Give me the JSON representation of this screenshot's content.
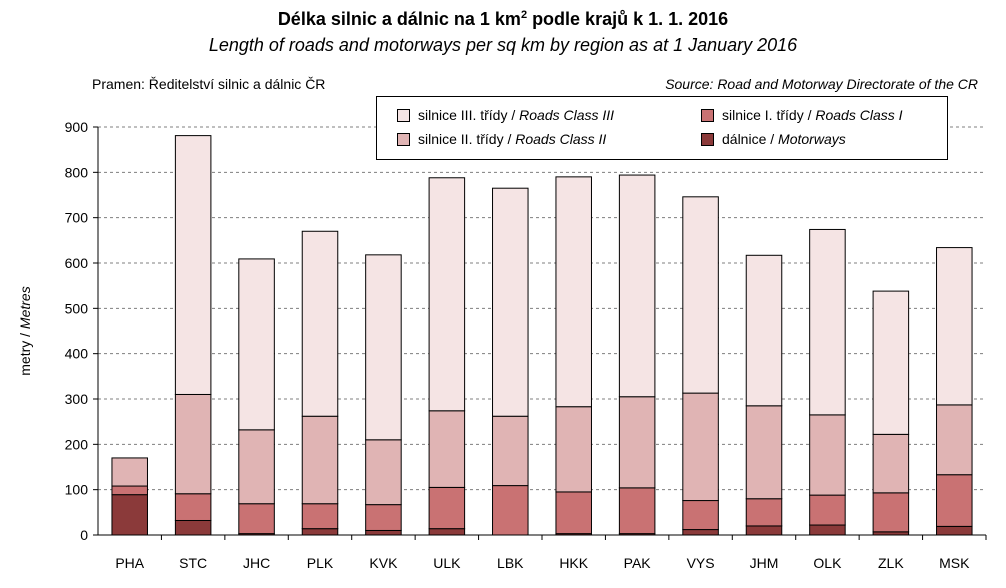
{
  "header": {
    "title_main": "Délka silnic a dálnic na 1 km",
    "title_sup": "2",
    "title_rest": " podle krajů k 1. 1. 2016",
    "subtitle": "Length of roads and motorways per sq km by region as at 1 January 2016",
    "source_cz": "Pramen: Ředitelství silnic a dálnic ČR",
    "source_en": "Source: Road and Motorway Directorate of the CR"
  },
  "legend": {
    "class3_cz": "silnice III. třídy / ",
    "class3_en": "Roads Class III",
    "class2_cz": "silnice II. třídy / ",
    "class2_en": "Roads Class II",
    "class1_cz": "silnice I. třídy / ",
    "class1_en": "Roads Class I",
    "motorways_cz": "dálnice / ",
    "motorways_en": "Motorways"
  },
  "chart_data": {
    "type": "bar",
    "stacked": true,
    "ylabel_cz": "metry / ",
    "ylabel_en": "Metres",
    "ylim": [
      0,
      900
    ],
    "yticks": [
      0,
      100,
      200,
      300,
      400,
      500,
      600,
      700,
      800,
      900
    ],
    "grid": "horizontal dashed",
    "categories": [
      "PHA",
      "STC",
      "JHC",
      "PLK",
      "KVK",
      "ULK",
      "LBK",
      "HKK",
      "PAK",
      "VYS",
      "JHM",
      "OLK",
      "ZLK",
      "MSK"
    ],
    "series": [
      {
        "name": "dálnice / Motorways",
        "color": "#8b3a3a",
        "values": [
          89,
          32,
          3,
          14,
          10,
          14,
          0,
          3,
          3,
          12,
          20,
          22,
          7,
          19
        ]
      },
      {
        "name": "silnice I. třídy / Roads Class I",
        "color": "#c97273",
        "values": [
          19,
          59,
          66,
          55,
          57,
          91,
          109,
          92,
          101,
          64,
          60,
          66,
          86,
          114
        ]
      },
      {
        "name": "silnice II. třídy / Roads Class II",
        "color": "#e0b4b4",
        "values": [
          62,
          219,
          163,
          193,
          143,
          169,
          153,
          188,
          201,
          237,
          205,
          177,
          129,
          154
        ]
      },
      {
        "name": "silnice III. třídy / Roads Class III",
        "color": "#f5e4e4",
        "values": [
          0,
          571,
          377,
          408,
          408,
          514,
          503,
          507,
          489,
          433,
          332,
          409,
          316,
          347
        ]
      }
    ]
  }
}
